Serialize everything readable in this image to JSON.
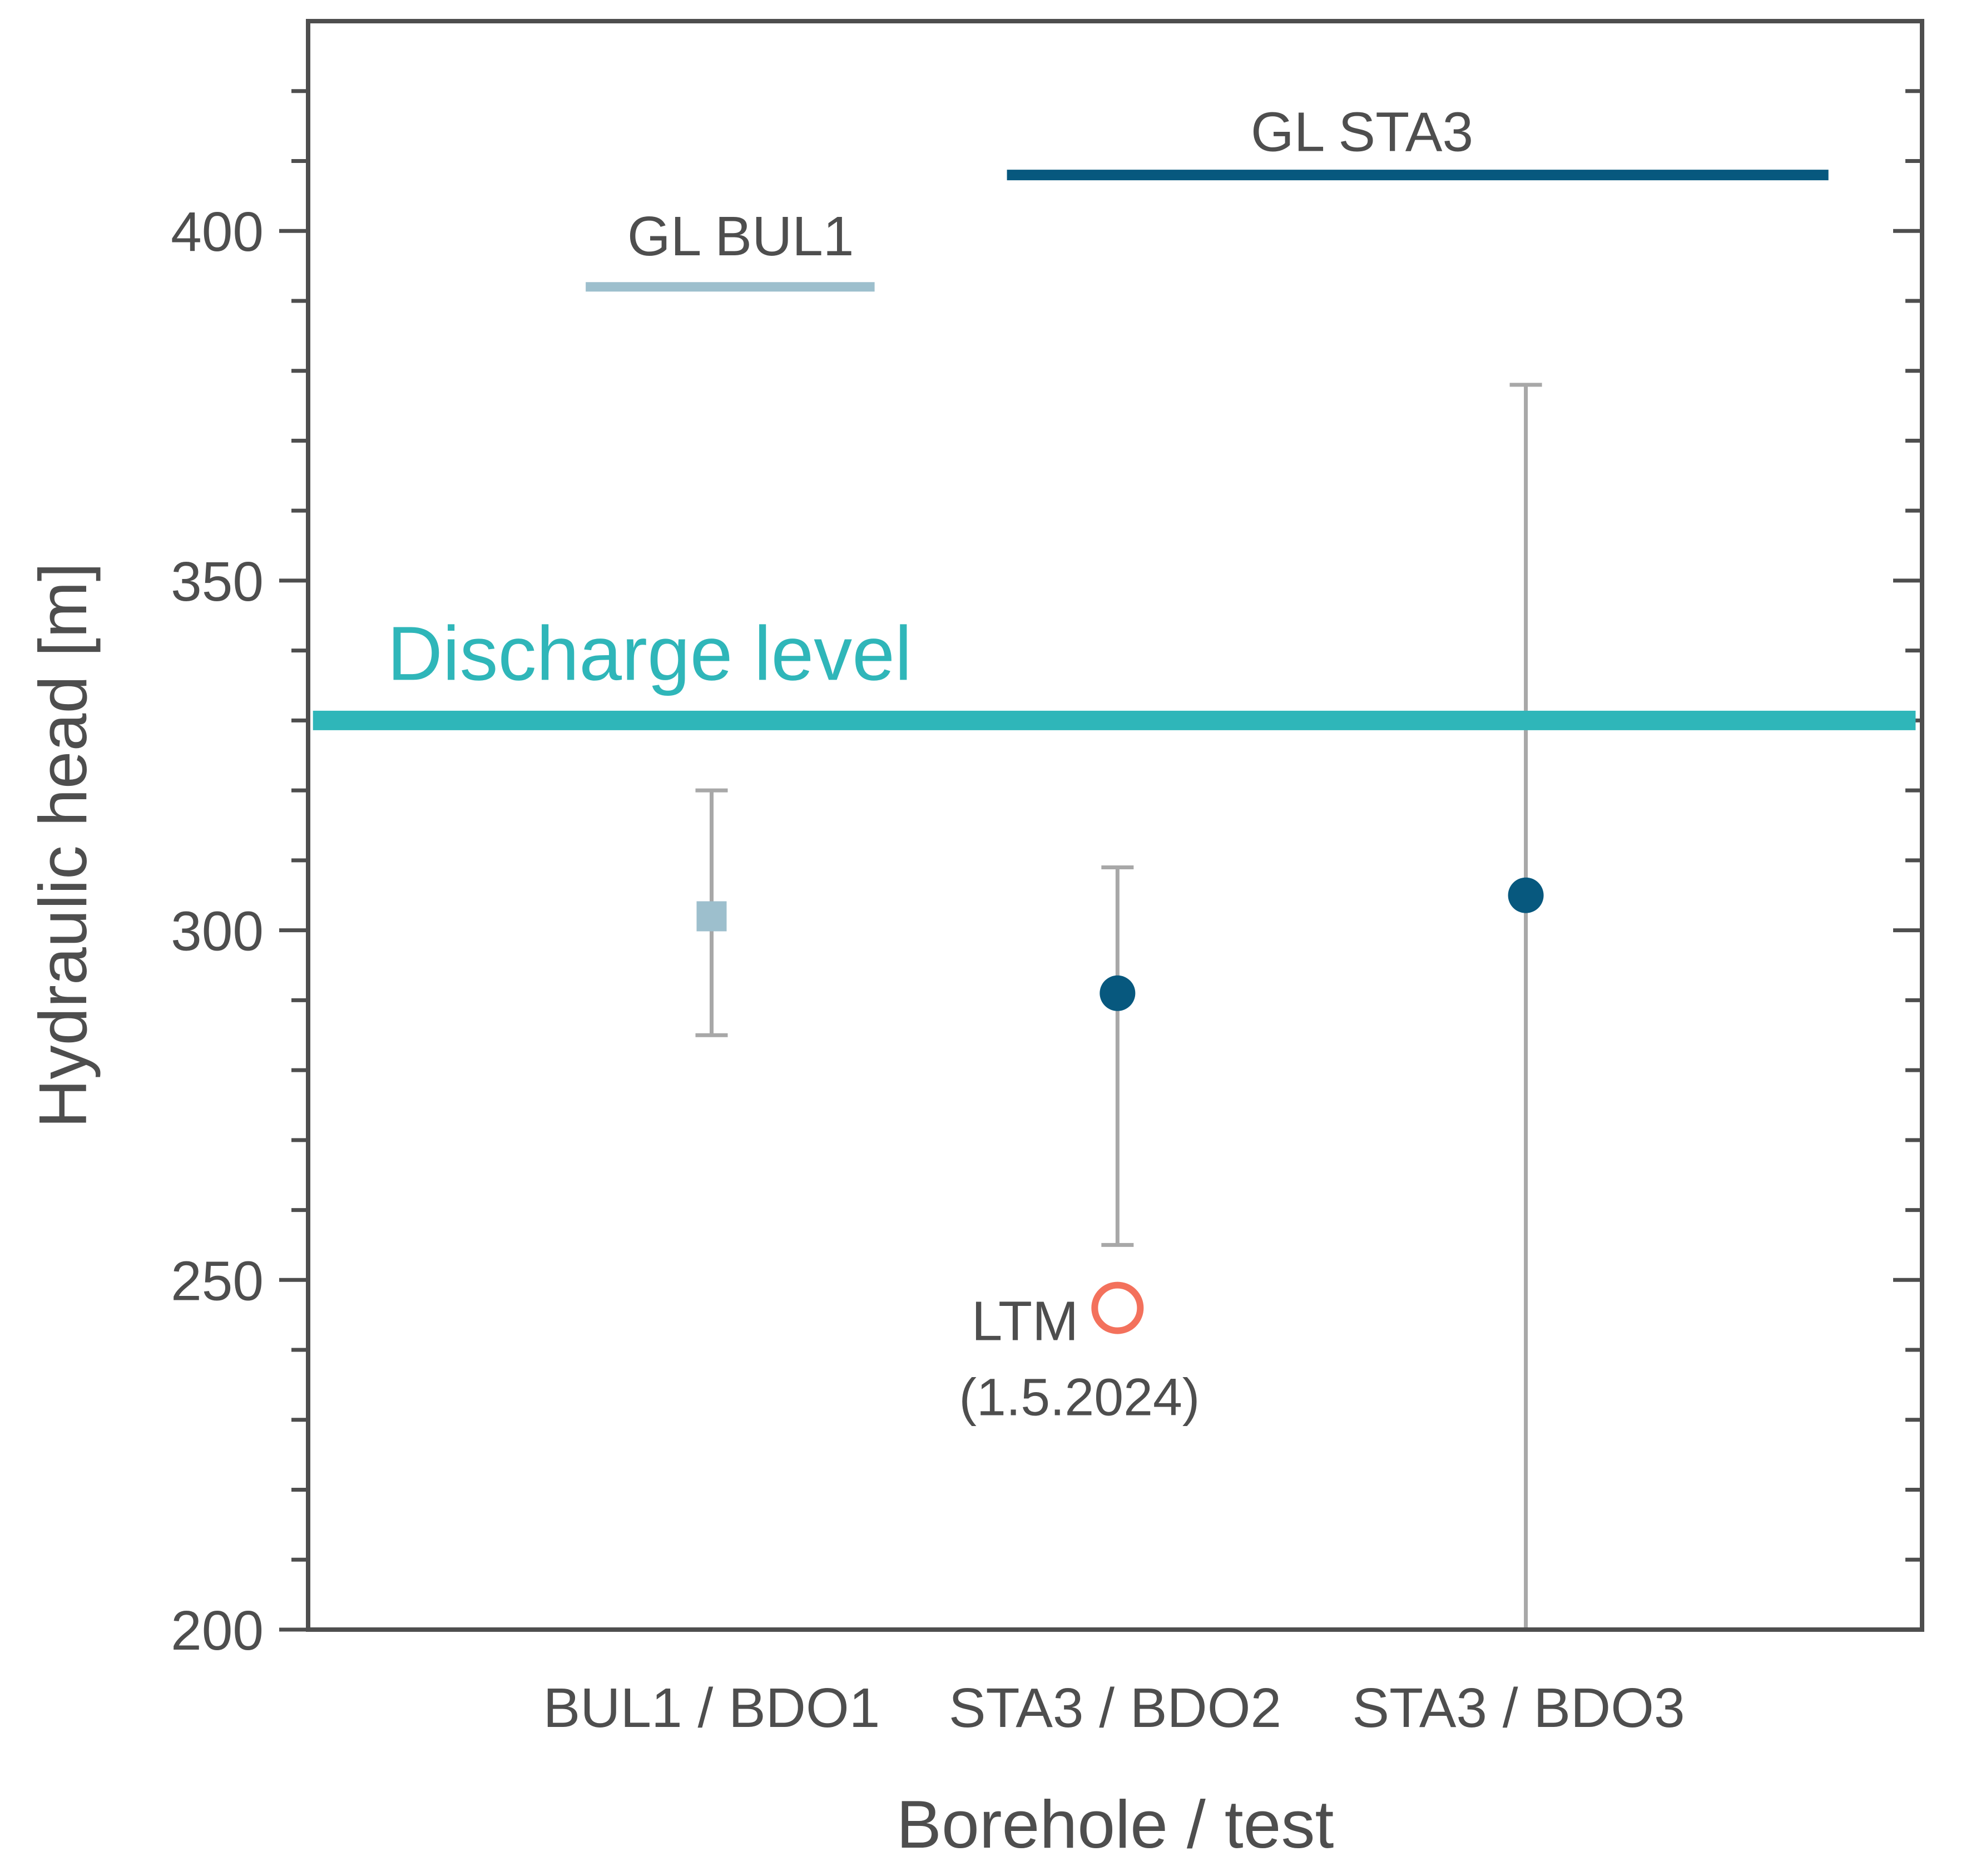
{
  "chart_data": {
    "type": "scatter",
    "title": "",
    "xlabel": "Borehole / test",
    "ylabel": "Hydraulic head [m]",
    "ylim": [
      200,
      430
    ],
    "yticks_major": [
      200,
      250,
      300,
      350,
      400
    ],
    "ytick_minor_step": 10,
    "grid": "off",
    "legend": "none",
    "categories": [
      "BUL1 / BDO1",
      "STA3 / BDO2",
      "STA3 / BDO3"
    ],
    "category_positions": [
      0.25,
      0.5,
      0.75
    ],
    "points": [
      {
        "category": "BUL1 / BDO1",
        "x_frac": 0.25,
        "value": 302,
        "err_low": 285,
        "err_high": 320,
        "marker": "square",
        "color_key": "light_blue",
        "cap_low": true,
        "cap_high": true
      },
      {
        "category": "STA3 / BDO2",
        "x_frac": 0.5015,
        "value": 291,
        "err_low": 255,
        "err_high": 309,
        "marker": "circle",
        "color_key": "dark_blue",
        "cap_low": true,
        "cap_high": true
      },
      {
        "category": "STA3 / BDO3",
        "x_frac": 0.7545,
        "value": 305,
        "err_low": 200,
        "err_high": 378,
        "marker": "circle",
        "color_key": "dark_blue",
        "cap_low": false,
        "cap_high": true
      }
    ],
    "reference_lines": [
      {
        "label": "GL BUL1",
        "value": 392,
        "x_start_frac": 0.172,
        "x_end_frac": 0.351,
        "thickness": 17,
        "color_key": "light_blue",
        "label_color_key": "text",
        "label_x_frac": 0.268,
        "label_anchor": "middle",
        "label_dy": -57,
        "label_font": 100
      },
      {
        "label": "GL STA3",
        "value": 408,
        "x_start_frac": 0.433,
        "x_end_frac": 0.942,
        "thickness": 19,
        "color_key": "dark_blue",
        "label_color_key": "text",
        "label_x_frac": 0.653,
        "label_anchor": "middle",
        "label_dy": -43,
        "label_font": 100
      },
      {
        "label": "Discharge level",
        "value": 330,
        "x_start_frac": 0.003,
        "x_end_frac": 0.996,
        "thickness": 35,
        "color_key": "teal",
        "label_color_key": "teal",
        "label_x_frac": 0.049,
        "label_anchor": "start",
        "label_dy": -73,
        "label_font": 138
      }
    ],
    "annotation": {
      "label": "LTM",
      "date": "(1.5.2024)",
      "value": 246,
      "x_frac": 0.5015,
      "marker": "open_circle",
      "ring_radius": 41,
      "ring_stroke": 12,
      "color_key": "orange",
      "label_dx": -70,
      "label_dy": 58,
      "label_font": 100,
      "date_dx": -285,
      "date_dy": 193,
      "date_font": 95
    },
    "colors": {
      "light_blue": "#9dbfcd",
      "dark_blue": "#07587e",
      "teal": "#2fb6b9",
      "orange": "#f3715c",
      "error_bar": "#a8a8a8",
      "axis": "#4e4e4e",
      "text": "#4e4e4e"
    },
    "style": {
      "marker_square_size": 54,
      "marker_circle_radius": 32,
      "error_stroke": 7,
      "error_cap_halfwidth": 29,
      "axis_stroke": 8,
      "tick_stroke": 7,
      "tick_major_len": 52,
      "tick_minor_len": 30,
      "tick_label_font": 100,
      "axis_title_font": 122,
      "xtick_label_baseline_y": 3105,
      "xlabel_baseline_y": 3322,
      "ylabel_x": 155,
      "ylabel_center_y": 1520
    }
  }
}
